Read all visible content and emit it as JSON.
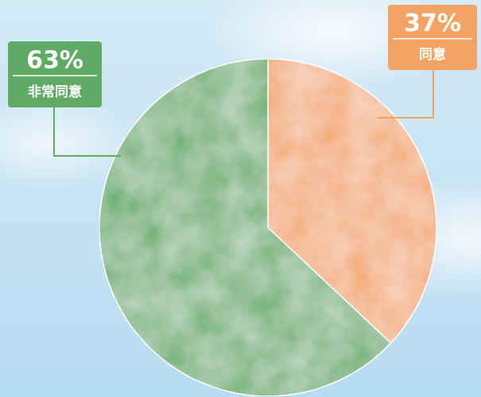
{
  "chart_data": {
    "type": "pie",
    "categories": [
      "同意",
      "非常同意"
    ],
    "values": [
      37,
      63
    ],
    "value_labels": [
      "37%",
      "63%"
    ],
    "colors": [
      "#f2a464",
      "#5fab66"
    ]
  }
}
